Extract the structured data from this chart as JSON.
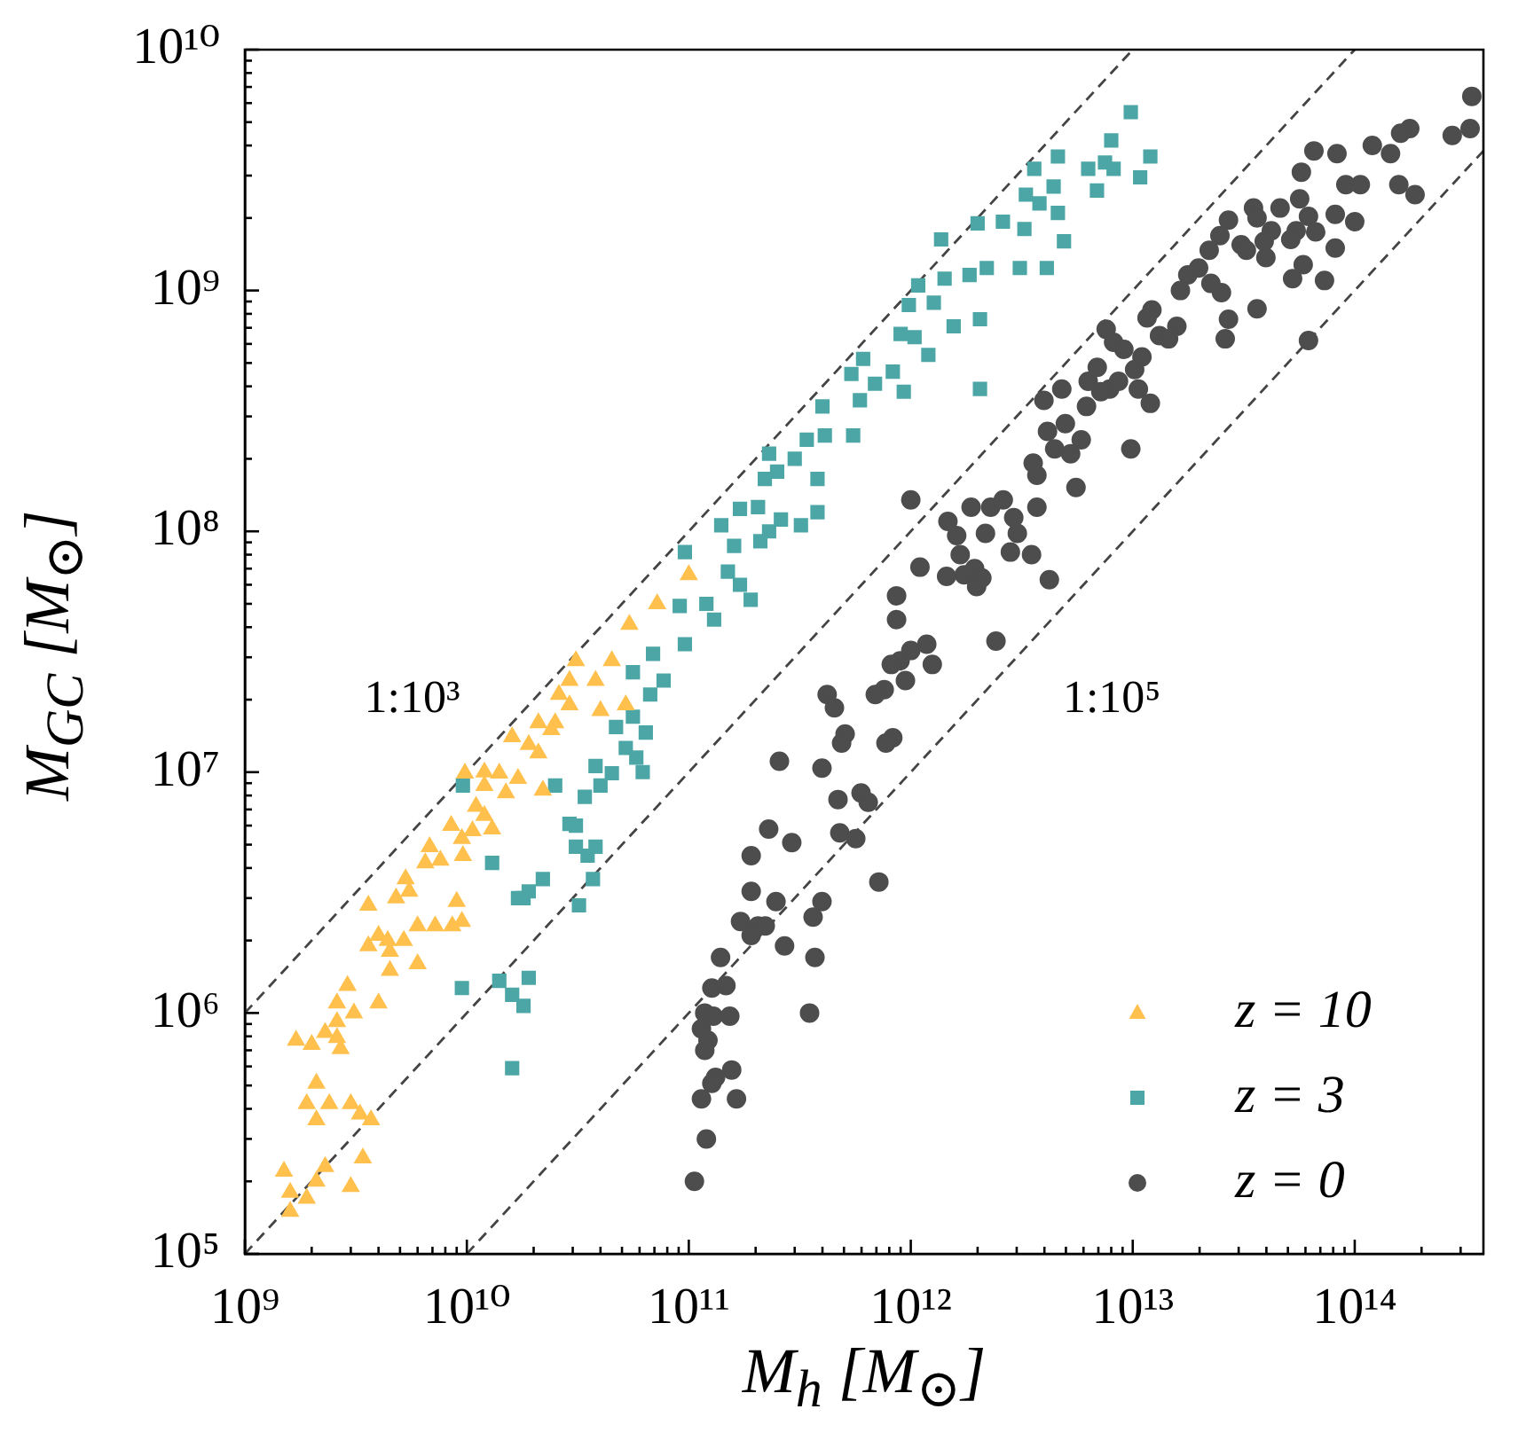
{
  "chart_data": {
    "type": "scatter",
    "log": "xy",
    "legend": "bottom right",
    "xlabel": "M$_{h}$ [M$_{⊙}$]",
    "ylabel": "M$_{GC}$ [M$_{⊙}$]",
    "xlim": [
      1000000000.0,
      380000000000000.0
    ],
    "ylim": [
      100000.0,
      10000000000.0
    ],
    "xticks": [
      {
        "value": 1000000000.0,
        "label": "10⁹"
      },
      {
        "value": 2000000000.0,
        "label": null
      },
      {
        "value": 3000000000.0,
        "label": null
      },
      {
        "value": 4000000000.0,
        "label": null
      },
      {
        "value": 5000000000.0,
        "label": null
      },
      {
        "value": 6000000000.0,
        "label": null
      },
      {
        "value": 7000000000.0,
        "label": null
      },
      {
        "value": 8000000000.0,
        "label": null
      },
      {
        "value": 9000000000.0,
        "label": null
      },
      {
        "value": 10000000000.0,
        "label": "10¹⁰"
      },
      {
        "value": 20000000000.0,
        "label": null
      },
      {
        "value": 30000000000.0,
        "label": null
      },
      {
        "value": 40000000000.0,
        "label": null
      },
      {
        "value": 50000000000.0,
        "label": null
      },
      {
        "value": 60000000000.0,
        "label": null
      },
      {
        "value": 70000000000.0,
        "label": null
      },
      {
        "value": 80000000000.0,
        "label": null
      },
      {
        "value": 90000000000.0,
        "label": null
      },
      {
        "value": 100000000000.0,
        "label": "10¹¹"
      },
      {
        "value": 200000000000.0,
        "label": null
      },
      {
        "value": 300000000000.0,
        "label": null
      },
      {
        "value": 400000000000.0,
        "label": null
      },
      {
        "value": 500000000000.0,
        "label": null
      },
      {
        "value": 600000000000.0,
        "label": null
      },
      {
        "value": 700000000000.0,
        "label": null
      },
      {
        "value": 800000000000.0,
        "label": null
      },
      {
        "value": 900000000000.0,
        "label": null
      },
      {
        "value": 1000000000000.0,
        "label": "10¹²"
      },
      {
        "value": 2000000000000.0,
        "label": null
      },
      {
        "value": 3000000000000.0,
        "label": null
      },
      {
        "value": 4000000000000.0,
        "label": null
      },
      {
        "value": 5000000000000.0,
        "label": null
      },
      {
        "value": 6000000000000.0,
        "label": null
      },
      {
        "value": 7000000000000.0,
        "label": null
      },
      {
        "value": 8000000000000.0,
        "label": null
      },
      {
        "value": 9000000000000.0,
        "label": null
      },
      {
        "value": 10000000000000.0,
        "label": "10¹³"
      },
      {
        "value": 20000000000000.0,
        "label": null
      },
      {
        "value": 30000000000000.0,
        "label": null
      },
      {
        "value": 40000000000000.0,
        "label": null
      },
      {
        "value": 50000000000000.0,
        "label": null
      },
      {
        "value": 60000000000000.0,
        "label": null
      },
      {
        "value": 70000000000000.0,
        "label": null
      },
      {
        "value": 80000000000000.0,
        "label": null
      },
      {
        "value": 90000000000000.0,
        "label": null
      },
      {
        "value": 100000000000000.0,
        "label": "10¹⁴"
      },
      {
        "value": 200000000000000.0,
        "label": null
      },
      {
        "value": 300000000000000.0,
        "label": null
      }
    ],
    "yticks": [
      {
        "value": 100000.0,
        "label": "10⁵"
      },
      {
        "value": 200000.0,
        "label": null
      },
      {
        "value": 300000.0,
        "label": null
      },
      {
        "value": 400000.0,
        "label": null
      },
      {
        "value": 500000.0,
        "label": null
      },
      {
        "value": 600000.0,
        "label": null
      },
      {
        "value": 700000.0,
        "label": null
      },
      {
        "value": 800000.0,
        "label": null
      },
      {
        "value": 900000.0,
        "label": null
      },
      {
        "value": 1000000.0,
        "label": "10⁶"
      },
      {
        "value": 2000000.0,
        "label": null
      },
      {
        "value": 3000000.0,
        "label": null
      },
      {
        "value": 4000000.0,
        "label": null
      },
      {
        "value": 5000000.0,
        "label": null
      },
      {
        "value": 6000000.0,
        "label": null
      },
      {
        "value": 7000000.0,
        "label": null
      },
      {
        "value": 8000000.0,
        "label": null
      },
      {
        "value": 9000000.0,
        "label": null
      },
      {
        "value": 10000000.0,
        "label": "10⁷"
      },
      {
        "value": 20000000.0,
        "label": null
      },
      {
        "value": 30000000.0,
        "label": null
      },
      {
        "value": 40000000.0,
        "label": null
      },
      {
        "value": 50000000.0,
        "label": null
      },
      {
        "value": 60000000.0,
        "label": null
      },
      {
        "value": 70000000.0,
        "label": null
      },
      {
        "value": 80000000.0,
        "label": null
      },
      {
        "value": 90000000.0,
        "label": null
      },
      {
        "value": 100000000.0,
        "label": "10⁸"
      },
      {
        "value": 200000000.0,
        "label": null
      },
      {
        "value": 300000000.0,
        "label": null
      },
      {
        "value": 400000000.0,
        "label": null
      },
      {
        "value": 500000000.0,
        "label": null
      },
      {
        "value": 600000000.0,
        "label": null
      },
      {
        "value": 700000000.0,
        "label": null
      },
      {
        "value": 800000000.0,
        "label": null
      },
      {
        "value": 900000000.0,
        "label": null
      },
      {
        "value": 1000000000.0,
        "label": "10⁹"
      },
      {
        "value": 2000000000.0,
        "label": null
      },
      {
        "value": 3000000000.0,
        "label": null
      },
      {
        "value": 4000000000.0,
        "label": null
      },
      {
        "value": 5000000000.0,
        "label": null
      },
      {
        "value": 6000000000.0,
        "label": null
      },
      {
        "value": 7000000000.0,
        "label": null
      },
      {
        "value": 8000000000.0,
        "label": null
      },
      {
        "value": 9000000000.0,
        "label": null
      },
      {
        "value": 10000000000.0,
        "label": "10¹⁰"
      }
    ],
    "annotations": [
      "1:10³",
      "1:10⁵"
    ],
    "series": [
      {
        "name": "z = 10",
        "type": "scatter",
        "marker": "triangle",
        "color": "#ffc04d",
        "x": [
          1600000000.0,
          1600000000.0,
          1500000000.0,
          1900000000.0,
          2100000000.0,
          2300000000.0,
          3000000000.0,
          3400000000.0,
          2100000000.0,
          1900000000.0,
          2100000000.0,
          2400000000.0,
          3000000000.0,
          3300000000.0,
          3700000000.0,
          1700000000.0,
          2000000000.0,
          2300000000.0,
          2600000000.0,
          2700000000.0,
          2600000000.0,
          2600000000.0,
          2900000000.0,
          3100000000.0,
          4000000000.0,
          4500000000.0,
          4500000000.0,
          3600000000.0,
          4000000000.0,
          4400000000.0,
          5200000000.0,
          6000000000.0,
          6000000000.0,
          7200000000.0,
          8600000000.0,
          9500000000.0,
          9000000000.0,
          3600000000.0,
          4800000000.0,
          5500000000.0,
          5300000000.0,
          6500000000.0,
          7600000000.0,
          6800000000.0,
          9600000000.0,
          8500000000.0,
          9500000000.0,
          10600000000.0,
          12000000000.0,
          13000000000.0,
          11000000000.0,
          12000000000.0,
          15000000000.0,
          9800000000.0,
          12000000000.0,
          14000000000.0,
          17000000000.0,
          22000000000.0,
          16000000000.0,
          19000000000.0,
          21000000000.0,
          21000000000.0,
          25000000000.0,
          24000000000.0,
          26000000000.0,
          29000000000.0,
          40000000000.0,
          29000000000.0,
          31000000000.0,
          38000000000.0,
          45000000000.0,
          52000000000.0,
          54000000000.0,
          72000000000.0,
          100000000000.0
        ],
        "values": [
          150000.0,
          180000.0,
          220000.0,
          170000.0,
          200000.0,
          230000.0,
          190000.0,
          250000.0,
          360000.0,
          420000.0,
          510000.0,
          420000.0,
          420000.0,
          380000.0,
          360000.0,
          770000.0,
          740000.0,
          830000.0,
          790000.0,
          710000.0,
          920000.0,
          1100000.0,
          1300000.0,
          1000000.0,
          1100000.0,
          1500000.0,
          1800000.0,
          1900000.0,
          2100000.0,
          2000000.0,
          2000000.0,
          1600000.0,
          2300000.0,
          2300000.0,
          2300000.0,
          2400000.0,
          2900000.0,
          2800000.0,
          3000000.0,
          3200000.0,
          3600000.0,
          4200000.0,
          4300000.0,
          4900000.0,
          4500000.0,
          6000000.0,
          5300000.0,
          5700000.0,
          6600000.0,
          5800000.0,
          7200000.0,
          8800000.0,
          8200000.0,
          9900000.0,
          10000000.0,
          9900000.0,
          9400000.0,
          8400000.0,
          14000000.0,
          13000000.0,
          12000000.0,
          16000000.0,
          16000000.0,
          15000000.0,
          21000000.0,
          19000000.0,
          18000000.0,
          24000000.0,
          29000000.0,
          24000000.0,
          29000000.0,
          19000000.0,
          41000000.0,
          50000000.0,
          66000000.0
        ]
      },
      {
        "name": "z = 3",
        "type": "scatter",
        "marker": "square",
        "color": "#4da6a6",
        "x": [
          9600000000.0,
          13000000000.0,
          17000000000.0,
          18000000000.0,
          19000000000.0,
          22000000000.0,
          32000000000.0,
          37000000000.0,
          9500000000.0,
          14000000000.0,
          16000000000.0,
          19000000000.0,
          18000000000.0,
          16000000000.0,
          25000000000.0,
          34000000000.0,
          38000000000.0,
          45000000000.0,
          40000000000.0,
          29000000000.0,
          31000000000.0,
          31000000000.0,
          35000000000.0,
          38000000000.0,
          47000000000.0,
          56000000000.0,
          64000000000.0,
          52000000000.0,
          58000000000.0,
          62000000000.0,
          69000000000.0,
          56000000000.0,
          77000000000.0,
          67000000000.0,
          96000000000.0,
          91000000000.0,
          96000000000.0,
          120000000000.0,
          130000000000.0,
          150000000000.0,
          140000000000.0,
          160000000000.0,
          170000000000.0,
          190000000000.0,
          170000000000.0,
          205000000000.0,
          210000000000.0,
          230000000000.0,
          260000000000.0,
          320000000000.0,
          380000000000.0,
          220000000000.0,
          250000000000.0,
          300000000000.0,
          380000000000.0,
          340000000000.0,
          230000000000.0,
          410000000000.0,
          550000000000.0,
          400000000000.0,
          540000000000.0,
          590000000000.0,
          610000000000.0,
          690000000000.0,
          830000000000.0,
          930000000000.0,
          900000000000.0,
          1040000000000.0,
          1200000000000.0,
          1560000000000.0,
          2050000000000.0,
          980000000000.0,
          1080000000000.0,
          1270000000000.0,
          1420000000000.0,
          1840000000000.0,
          2200000000000.0,
          2050000000000.0,
          3100000000000.0,
          4100000000000.0,
          1370000000000.0,
          2000000000000.0,
          2600000000000.0,
          3250000000000.0,
          4900000000000.0,
          3300000000000.0,
          3800000000000.0,
          4400000000000.0,
          4600000000000.0,
          3600000000000.0,
          4600000000000.0,
          6300000000000.0,
          6900000000000.0,
          7500000000000.0,
          8200000000000.0,
          8000000000000.0,
          9800000000000.0,
          12000000000000.0,
          10800000000000.0
        ],
        "values": [
          8800000.0,
          4200000.0,
          3000000.0,
          3000000.0,
          3200000.0,
          3600000.0,
          2800000.0,
          3600000.0,
          1270000.0,
          1360000.0,
          1190000.0,
          1400000.0,
          1070000.0,
          590000.0,
          8800000.0,
          7900000.0,
          10600000.0,
          9900000.0,
          8800000.0,
          6100000.0,
          6000000.0,
          4900000.0,
          4500000.0,
          4900000.0,
          15400000.0,
          17000000.0,
          14600000.0,
          12600000.0,
          11500000.0,
          10000000.0,
          31000000.0,
          26000000.0,
          24000000.0,
          21000000.0,
          82000000.0,
          49000000.0,
          34000000.0,
          50000000.0,
          43000000.0,
          68000000.0,
          106000000.0,
          87000000.0,
          60000000.0,
          52000000.0,
          124000000.0,
          126000000.0,
          91000000.0,
          100000000.0,
          112000000.0,
          106000000.0,
          120000000.0,
          165000000.0,
          177000000.0,
          200000000.0,
          165000000.0,
          240000000.0,
          210000000.0,
          250000000.0,
          250000000.0,
          330000000.0,
          450000000.0,
          350000000.0,
          520000000.0,
          410000000.0,
          460000000.0,
          380000000.0,
          660000000.0,
          640000000.0,
          540000000.0,
          710000000.0,
          390000000.0,
          870000000.0,
          1050000000.0,
          890000000.0,
          1120000000.0,
          1160000000.0,
          1240000000.0,
          760000000.0,
          1240000000.0,
          1240000000.0,
          1630000000.0,
          1900000000.0,
          1930000000.0,
          1800000000.0,
          1600000000.0,
          2500000000.0,
          2300000000.0,
          2700000000.0,
          2100000000.0,
          3200000000.0,
          3600000000.0,
          3200000000.0,
          2600000000.0,
          3400000000.0,
          3200000000.0,
          4200000000.0,
          5500000000.0,
          3600000000.0,
          2950000000.0
        ]
      },
      {
        "name": "z = 0",
        "type": "scatter",
        "marker": "circle",
        "color": "#4d4d4d",
        "x": [
          2420000000000.0,
          1180000000000.0,
          1000000000000.0,
          895000000000.0,
          817000000000.0,
          1250000000000.0,
          946000000000.0,
          759000000000.0,
          692000000000.0,
          420000000000.0,
          453000000000.0,
          506000000000.0,
          488000000000.0,
          830000000000.0,
          773000000000.0,
          256000000000.0,
          398000000000.0,
          597000000000.0,
          643000000000.0,
          470000000000.0,
          229000000000.0,
          291000000000.0,
          479000000000.0,
          565000000000.0,
          191000000000.0,
          718000000000.0,
          191000000000.0,
          247000000000.0,
          398000000000.0,
          363000000000.0,
          171000000000.0,
          205000000000.0,
          221000000000.0,
          191000000000.0,
          270000000000.0,
          370000000000.0,
          139000000000.0,
          127000000000.0,
          147000000000.0,
          118000000000.0,
          129000000000.0,
          153000000000.0,
          114000000000.0,
          122000000000.0,
          118000000000.0,
          350000000000.0,
          156000000000.0,
          132000000000.0,
          127000000000.0,
          114000000000.0,
          164000000000.0,
          120000000000.0,
          106000000000.0,
          7590000000000.0,
          8200000000000.0,
          9120000000000.0,
          6920000000000.0,
          6300000000000.0,
          7870000000000.0,
          8630000000000.0,
          7180000000000.0,
          4790000000000.0,
          3980000000000.0,
          6190000000000.0,
          4130000000000.0,
          4970000000000.0,
          5860000000000.0,
          4450000000000.0,
          5250000000000.0,
          3560000000000.0,
          3700000000000.0,
          5550000000000.0,
          1000000000000.0,
          1470000000000.0,
          1870000000000.0,
          2290000000000.0,
          2610000000000.0,
          3700000000000.0,
          2910000000000.0,
          1610000000000.0,
          2170000000000.0,
          3020000000000.0,
          1670000000000.0,
          2810000000000.0,
          3500000000000.0,
          1100000000000.0,
          1450000000000.0,
          1740000000000.0,
          1940000000000.0,
          2090000000000.0,
          1980000000000.0,
          4210000000000.0,
          863000000000.0,
          863000000000.0,
          337000000000000.0,
          331000000000000.0,
          275000000000000.0,
          177000000000000.0,
          161000000000000.0,
          120000000000000.0,
          145000000000000.0,
          83200000000000.0,
          65500000000000.0,
          57500000000000.0,
          91200000000000.0,
          106000000000000.0,
          158000000000000.0,
          187000000000000.0,
          56500000000000.0,
          35000000000000.0,
          46100000000000.0,
          36300000000000.0,
          27000000000000.0,
          61900000000000.0,
          81700000000000.0,
          100000000000000.0,
          42100000000000.0,
          24700000000000.0,
          54500000000000.0,
          66700000000000.0,
          39100000000000.0,
          30800000000000.0,
          51500000000000.0,
          22100000000000.0,
          32500000000000.0,
          81700000000000.0,
          39800000000000.0,
          58600000000000.0,
          19800000000000.0,
          17700000000000.0,
          22500000000000.0,
          16400000000000.0,
          25100000000000.0,
          52500000000000.0,
          73100000000000.0,
          36300000000000.0,
          12200000000000.0,
          11600000000000.0,
          27000000000000.0,
          15800000000000.0,
          13200000000000.0,
          14500000000000.0,
          26100000000000.0,
          61900000000000.0,
          11000000000000.0,
          10200000000000.0,
          10600000000000.0,
          12000000000000.0,
          9800000000000.0
        ],
        "values": [
          35000000.0,
          34000000.0,
          32000000.0,
          29000000.0,
          28000000.0,
          28000000.0,
          24000000.0,
          22000000.0,
          21000000.0,
          21000000.0,
          18500000.0,
          14400000.0,
          13200000.0,
          13900000.0,
          13200000.0,
          11100000.0,
          10400000.0,
          8200000.0,
          7500000.0,
          7700000.0,
          5800000.0,
          5100000.0,
          5600000.0,
          5300000.0,
          4500000.0,
          3500000.0,
          3200000.0,
          2900000.0,
          2900000.0,
          2500000.0,
          2400000.0,
          2300000.0,
          2300000.0,
          2100000.0,
          1900000.0,
          1700000.0,
          1700000.0,
          1270000.0,
          1300000.0,
          1000000.0,
          970000.0,
          970000.0,
          860000.0,
          770000.0,
          700000.0,
          1000000.0,
          580000.0,
          540000.0,
          510000.0,
          440000.0,
          440000.0,
          300000.0,
          200000.0,
          690000000.0,
          610000000.0,
          570000000.0,
          480000000.0,
          420000000.0,
          390000000.0,
          420000000.0,
          380000000.0,
          390000000.0,
          350000000.0,
          330000000.0,
          260000000.0,
          280000000.0,
          240000000.0,
          220000000.0,
          210000000.0,
          192000000.0,
          171000000.0,
          152000000.0,
          135000000.0,
          110000000.0,
          126000000.0,
          126000000.0,
          135000000.0,
          126000000.0,
          114000000.0,
          96000000.0,
          98000000.0,
          98000000.0,
          80000000.0,
          82000000.0,
          80000000.0,
          71000000.0,
          65000000.0,
          66000000.0,
          70000000.0,
          64000000.0,
          59000000.0,
          63000000.0,
          54000000.0,
          43000000.0,
          6400000000.0,
          4700000000.0,
          4400000000.0,
          4700000000.0,
          4500000000.0,
          4000000000.0,
          3700000000.0,
          3700000000.0,
          3800000000.0,
          3100000000.0,
          2750000000.0,
          2750000000.0,
          2750000000.0,
          2500000000.0,
          2400000000.0,
          2200000000.0,
          2200000000.0,
          2000000000.0,
          1960000000.0,
          2030000000.0,
          2070000000.0,
          1930000000.0,
          1770000000.0,
          1690000000.0,
          1770000000.0,
          1750000000.0,
          1600000000.0,
          1550000000.0,
          1630000000.0,
          1470000000.0,
          1470000000.0,
          1500000000.0,
          1370000000.0,
          1280000000.0,
          1240000000.0,
          1160000000.0,
          1070000000.0,
          1000000000.0,
          980000000.0,
          1120000000.0,
          1100000000.0,
          840000000.0,
          830000000.0,
          770000000.0,
          760000000.0,
          710000000.0,
          650000000.0,
          630000000.0,
          630000000.0,
          620000000.0,
          530000000.0,
          470000000.0,
          390000000.0,
          340000000.0,
          220000000.0
        ]
      },
      {
        "type": "line",
        "line_style": "dashed",
        "color": "#444444",
        "x": [
          1000000000.0,
          10000000000000.0
        ],
        "values": [
          1000000.0,
          10000000000.0
        ]
      },
      {
        "type": "line",
        "line_style": "dashed",
        "color": "#444444",
        "x": [
          1000000000.0,
          100000000000000.0
        ],
        "values": [
          100000.0,
          10000000000.0
        ]
      },
      {
        "type": "line",
        "line_style": "dashed",
        "color": "#444444",
        "x": [
          10000000000.0,
          380000000000000.0
        ],
        "values": [
          100000.0,
          3800000000.0
        ]
      }
    ]
  }
}
